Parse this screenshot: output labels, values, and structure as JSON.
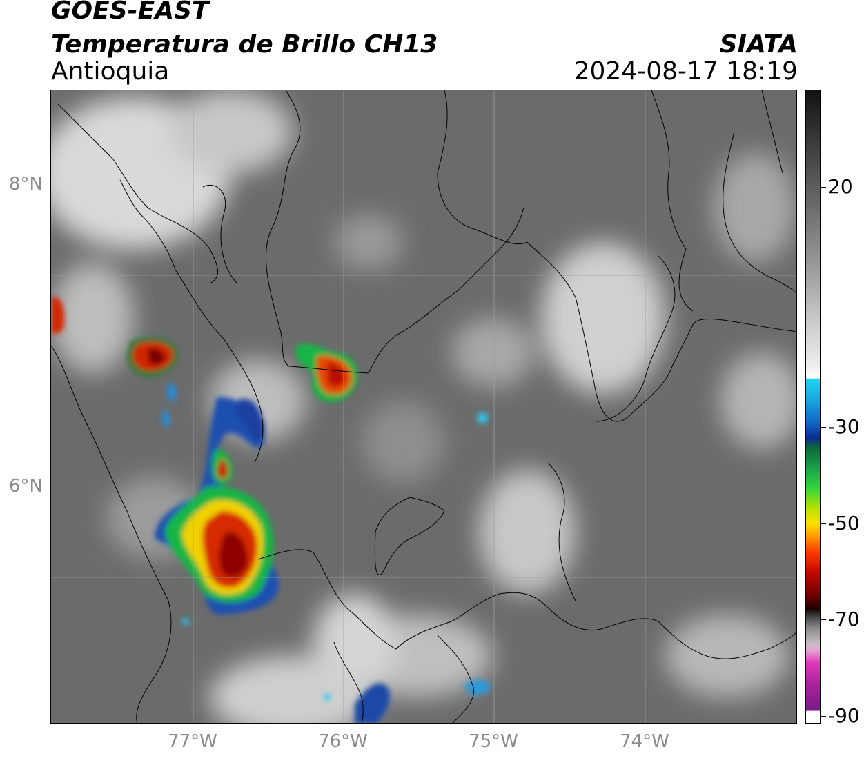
{
  "header": {
    "satellite": "GOES-EAST",
    "product": "Temperatura de Brillo CH13",
    "region": "Antioquia",
    "organization": "SIATA",
    "timestamp": "2024-08-17 18:19"
  },
  "map": {
    "lat_labels": [
      "8°N",
      "6°N"
    ],
    "lon_labels": [
      "77°W",
      "76°W",
      "75°W",
      "74°W"
    ]
  },
  "colorbar": {
    "ticks": [
      "20",
      "-30",
      "-50",
      "-70",
      "-90"
    ]
  }
}
